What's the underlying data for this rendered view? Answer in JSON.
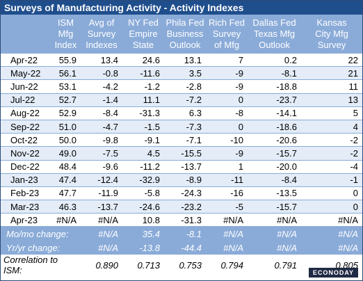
{
  "title": "Surveys of Manufacturing Activity - Activity Indexes",
  "headers": [
    {
      "lines": [
        "ISM",
        "Mfg",
        "Index"
      ]
    },
    {
      "lines": [
        "Avg of",
        "Survey",
        "Indexes"
      ]
    },
    {
      "lines": [
        "NY Fed",
        "Empire",
        "State"
      ]
    },
    {
      "lines": [
        "Phila Fed",
        "Business",
        "Outlook"
      ]
    },
    {
      "lines": [
        "Rich Fed",
        "Survey",
        "of Mfg"
      ]
    },
    {
      "lines": [
        "Dallas Fed",
        "Texas Mfg",
        "Outlook"
      ]
    },
    {
      "lines": [
        "Kansas",
        "City Mfg",
        "Survey"
      ]
    }
  ],
  "rows": [
    {
      "label": "Apr-22",
      "values": [
        "55.9",
        "13.4",
        "24.6",
        "13.1",
        "7",
        "0.2",
        "22"
      ]
    },
    {
      "label": "May-22",
      "values": [
        "56.1",
        "-0.8",
        "-11.6",
        "3.5",
        "-9",
        "-8.1",
        "21"
      ]
    },
    {
      "label": "Jun-22",
      "values": [
        "53.1",
        "-4.2",
        "-1.2",
        "-2.8",
        "-9",
        "-18.8",
        "11"
      ]
    },
    {
      "label": "Jul-22",
      "values": [
        "52.7",
        "-1.4",
        "11.1",
        "-7.2",
        "0",
        "-23.7",
        "13"
      ]
    },
    {
      "label": "Aug-22",
      "values": [
        "52.9",
        "-8.4",
        "-31.3",
        "6.3",
        "-8",
        "-14.1",
        "5"
      ]
    },
    {
      "label": "Sep-22",
      "values": [
        "51.0",
        "-4.7",
        "-1.5",
        "-7.3",
        "0",
        "-18.6",
        "4"
      ]
    },
    {
      "label": "Oct-22",
      "values": [
        "50.0",
        "-9.8",
        "-9.1",
        "-7.1",
        "-10",
        "-20.6",
        "-2"
      ]
    },
    {
      "label": "Nov-22",
      "values": [
        "49.0",
        "-7.5",
        "4.5",
        "-15.5",
        "-9",
        "-15.7",
        "-2"
      ]
    },
    {
      "label": "Dec-22",
      "values": [
        "48.4",
        "-9.6",
        "-11.2",
        "-13.7",
        "1",
        "-20.0",
        "-4"
      ]
    },
    {
      "label": "Jan-23",
      "values": [
        "47.4",
        "-12.4",
        "-32.9",
        "-8.9",
        "-11",
        "-8.4",
        "-1"
      ]
    },
    {
      "label": "Feb-23",
      "values": [
        "47.7",
        "-11.9",
        "-5.8",
        "-24.3",
        "-16",
        "-13.5",
        "0"
      ]
    },
    {
      "label": "Mar-23",
      "values": [
        "46.3",
        "-13.7",
        "-24.6",
        "-23.2",
        "-5",
        "-15.7",
        "0"
      ]
    },
    {
      "label": "Apr-23",
      "values": [
        "#N/A",
        "#N/A",
        "10.8",
        "-31.3",
        "#N/A",
        "#N/A",
        "#N/A"
      ]
    }
  ],
  "summary": [
    {
      "label": "Mo/mo change:",
      "values": [
        "",
        "#N/A",
        "35.4",
        "-8.1",
        "#N/A",
        "#N/A",
        "#N/A"
      ]
    },
    {
      "label": "Yr/yr change:",
      "values": [
        "",
        "#N/A",
        "-13.8",
        "-44.4",
        "#N/A",
        "#N/A",
        "#N/A"
      ]
    }
  ],
  "correlation": {
    "label": "Correlation to ISM:",
    "values": [
      "",
      "0.890",
      "0.713",
      "0.753",
      "0.794",
      "0.791",
      "0.805"
    ]
  },
  "logo": "ECONODAY"
}
